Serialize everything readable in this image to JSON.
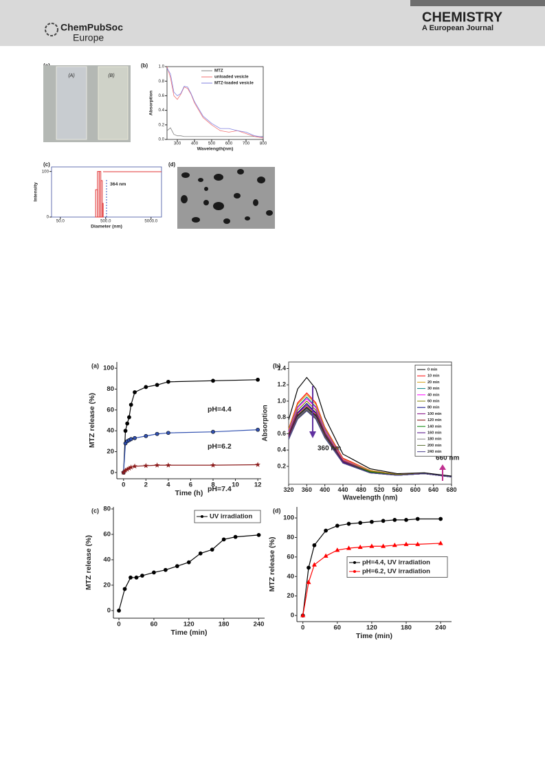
{
  "header": {
    "logo_name": "ChemPubSoc",
    "logo_region": "Europe",
    "journal": "CHEMISTRY",
    "journal_sub": "A European Journal"
  },
  "images": [
    {
      "panel": "(a)",
      "labels": [
        "(A)",
        "(B)"
      ]
    },
    {
      "panel": "(d)"
    }
  ],
  "chart_data": [
    {
      "type": "line",
      "panel": "(b)",
      "x_label": "Wavelength(nm)",
      "y_label": "Absorption",
      "xlim": [
        240,
        800
      ],
      "ylim": [
        0,
        1
      ],
      "xticks": [
        300,
        400,
        500,
        600,
        700,
        800
      ],
      "yticks": [
        {
          "value": 0,
          "label": "0.0"
        },
        0.2,
        0.4,
        0.6,
        0.8,
        {
          "value": 1,
          "label": "1.0"
        }
      ],
      "x": [
        240,
        260,
        280,
        300,
        320,
        340,
        360,
        380,
        400,
        450,
        500,
        550,
        600,
        650,
        700,
        750,
        800
      ],
      "series": [
        {
          "name": "MTZ",
          "color": "#808080",
          "values": [
            0.12,
            0.16,
            0.07,
            0.05,
            0.05,
            0.04,
            0.04,
            0.04,
            0.04,
            0.04,
            0.04,
            0.04,
            0.04,
            0.04,
            0.04,
            0.04,
            0.04
          ]
        },
        {
          "name": "unloaded vesicle",
          "color": "#f07070",
          "values": [
            1.0,
            0.85,
            0.6,
            0.55,
            0.62,
            0.72,
            0.7,
            0.62,
            0.5,
            0.3,
            0.2,
            0.12,
            0.1,
            0.12,
            0.08,
            0.04,
            0.02
          ]
        },
        {
          "name": "MTZ-loaded vesicle",
          "color": "#8080e0",
          "values": [
            0.98,
            0.9,
            0.65,
            0.6,
            0.63,
            0.73,
            0.72,
            0.63,
            0.52,
            0.32,
            0.22,
            0.15,
            0.15,
            0.12,
            0.1,
            0.05,
            0.03
          ]
        }
      ]
    },
    {
      "type": "histogram",
      "panel": "(c)",
      "x_label": "Diameter (nm)",
      "y_label": "Intensity",
      "log_x": true,
      "xlim": [
        32,
        8500
      ],
      "ylim": [
        0,
        110
      ],
      "xticks": [
        {
          "value": 50,
          "label": "50.0"
        },
        {
          "value": 500,
          "label": "500.0"
        },
        {
          "value": 5000,
          "label": "5000.0"
        }
      ],
      "yticks": [
        0,
        100
      ],
      "bins": [
        300,
        330,
        360,
        390,
        420,
        440
      ],
      "values": [
        60,
        100,
        100,
        80,
        30
      ],
      "color": "#e03030",
      "annotations": [
        "364 nm"
      ]
    },
    {
      "type": "line",
      "panel": "(a)",
      "x_label": "Time (h)",
      "y_label": "MTZ release (%)",
      "xlim": [
        -0.6,
        12.3
      ],
      "ylim": [
        -6,
        106
      ],
      "xticks": [
        0,
        2,
        4,
        6,
        8,
        10,
        12
      ],
      "yticks": [
        0,
        20,
        40,
        60,
        80,
        100
      ],
      "x": [
        0,
        0.17,
        0.33,
        0.5,
        0.67,
        1,
        2,
        3,
        4,
        8,
        12
      ],
      "series": [
        {
          "color": "#000000",
          "marker": "circle",
          "values": [
            0,
            40,
            47,
            53,
            65,
            77,
            82,
            84,
            87,
            88,
            89
          ]
        },
        {
          "color": "#3050b0",
          "marker": "circle",
          "values": [
            0,
            28,
            30,
            31,
            32,
            33,
            35,
            37,
            38,
            39,
            41
          ]
        },
        {
          "color": "#8b1a1a",
          "marker": "star",
          "values": [
            0,
            2,
            3,
            4,
            5,
            6,
            6.5,
            7,
            7,
            7,
            7.5
          ]
        }
      ],
      "annotations": [
        "pH=4.4",
        "pH=6.2",
        "pH=7.4"
      ]
    },
    {
      "type": "line",
      "panel": "(b)",
      "x_label": "Wavelength (nm)",
      "y_label": "Absorption",
      "xlim": [
        320,
        680
      ],
      "ylim": [
        -0.02,
        1.48
      ],
      "xticks": [
        320,
        360,
        400,
        440,
        480,
        520,
        560,
        600,
        640,
        680
      ],
      "yticks": [
        0.2,
        0.4,
        0.6,
        0.8,
        {
          "value": 1,
          "label": "1.0"
        },
        1.2,
        1.4
      ],
      "x": [
        320,
        340,
        360,
        380,
        400,
        440,
        500,
        560,
        620,
        680
      ],
      "series": [
        {
          "name": "0 min",
          "color": "#000000",
          "values": [
            0.77,
            1.15,
            1.29,
            1.15,
            0.8,
            0.35,
            0.17,
            0.11,
            0.12,
            0.08
          ]
        },
        {
          "name": "10 min",
          "color": "#ff0000",
          "values": [
            0.66,
            0.98,
            1.1,
            0.98,
            0.68,
            0.3,
            0.15,
            0.1,
            0.11,
            0.07
          ]
        },
        {
          "name": "20 min",
          "color": "#d4a017",
          "values": [
            0.65,
            0.96,
            1.08,
            0.96,
            0.67,
            0.29,
            0.15,
            0.1,
            0.11,
            0.07
          ]
        },
        {
          "name": "30 min",
          "color": "#008080",
          "values": [
            0.63,
            0.93,
            1.05,
            0.93,
            0.65,
            0.28,
            0.14,
            0.1,
            0.11,
            0.07
          ]
        },
        {
          "name": "40 min",
          "color": "#ff00ff",
          "values": [
            0.62,
            0.92,
            1.03,
            0.92,
            0.64,
            0.28,
            0.14,
            0.1,
            0.11,
            0.07
          ]
        },
        {
          "name": "60 min",
          "color": "#808000",
          "values": [
            0.6,
            0.89,
            1.0,
            0.89,
            0.62,
            0.27,
            0.14,
            0.1,
            0.11,
            0.07
          ]
        },
        {
          "name": "80 min",
          "color": "#000080",
          "values": [
            0.58,
            0.86,
            0.97,
            0.86,
            0.6,
            0.26,
            0.13,
            0.09,
            0.11,
            0.07
          ]
        },
        {
          "name": "100 min",
          "color": "#800080",
          "values": [
            0.57,
            0.85,
            0.95,
            0.85,
            0.59,
            0.26,
            0.13,
            0.09,
            0.11,
            0.07
          ]
        },
        {
          "name": "120 min",
          "color": "#800000",
          "values": [
            0.56,
            0.83,
            0.93,
            0.83,
            0.58,
            0.25,
            0.13,
            0.09,
            0.11,
            0.07
          ]
        },
        {
          "name": "140 min",
          "color": "#008000",
          "values": [
            0.55,
            0.82,
            0.92,
            0.82,
            0.57,
            0.25,
            0.13,
            0.09,
            0.11,
            0.07
          ]
        },
        {
          "name": "160 min",
          "color": "#4b0082",
          "values": [
            0.55,
            0.81,
            0.91,
            0.81,
            0.56,
            0.25,
            0.12,
            0.09,
            0.11,
            0.07
          ]
        },
        {
          "name": "180 min",
          "color": "#808080",
          "values": [
            0.54,
            0.8,
            0.9,
            0.8,
            0.56,
            0.24,
            0.12,
            0.09,
            0.11,
            0.07
          ]
        },
        {
          "name": "200 min",
          "color": "#556b2f",
          "values": [
            0.53,
            0.79,
            0.89,
            0.79,
            0.55,
            0.24,
            0.12,
            0.09,
            0.11,
            0.07
          ]
        },
        {
          "name": "240 min",
          "color": "#483d8b",
          "values": [
            0.53,
            0.78,
            0.88,
            0.78,
            0.55,
            0.24,
            0.12,
            0.09,
            0.11,
            0.07
          ]
        }
      ],
      "annotations": [
        "360 nm",
        "660 nm"
      ]
    },
    {
      "type": "line",
      "panel": "(c)",
      "x_label": "Time (min)",
      "y_label": "MTZ release (%)",
      "xlim": [
        -9.5,
        250
      ],
      "ylim": [
        -6,
        81.6
      ],
      "xticks": [
        0,
        60,
        120,
        180,
        240
      ],
      "yticks": [
        0,
        20,
        40,
        60,
        80
      ],
      "x": [
        0,
        10,
        20,
        30,
        40,
        60,
        80,
        100,
        120,
        140,
        160,
        180,
        200,
        240
      ],
      "series": [
        {
          "name": "UV irradiation",
          "color": "#000000",
          "marker": "circle",
          "values": [
            0,
            17,
            26,
            26,
            27.5,
            30,
            32,
            35,
            38,
            45,
            48,
            56,
            58,
            59.5
          ]
        }
      ]
    },
    {
      "type": "line",
      "panel": "(d)",
      "x_label": "Time (min)",
      "y_label": "MTZ release (%)",
      "xlim": [
        -10.4,
        259
      ],
      "ylim": [
        -6.3,
        111.3
      ],
      "xticks": [
        0,
        60,
        120,
        180,
        240
      ],
      "yticks": [
        0,
        20,
        40,
        60,
        80,
        100
      ],
      "x": [
        0,
        10,
        20,
        40,
        60,
        80,
        100,
        120,
        140,
        160,
        180,
        200,
        240
      ],
      "series": [
        {
          "name": "pH=4.4, UV irradiation",
          "color": "#000000",
          "marker": "circle",
          "values": [
            0,
            49,
            72,
            87,
            92,
            94,
            95,
            96,
            97,
            98,
            98,
            99,
            99
          ]
        },
        {
          "name": "pH=6.2, UV irradiation",
          "color": "#ff0000",
          "marker": "triangle",
          "values": [
            0,
            34,
            52,
            61,
            67,
            69,
            70,
            71,
            71,
            72,
            73,
            73,
            74
          ]
        }
      ]
    }
  ]
}
